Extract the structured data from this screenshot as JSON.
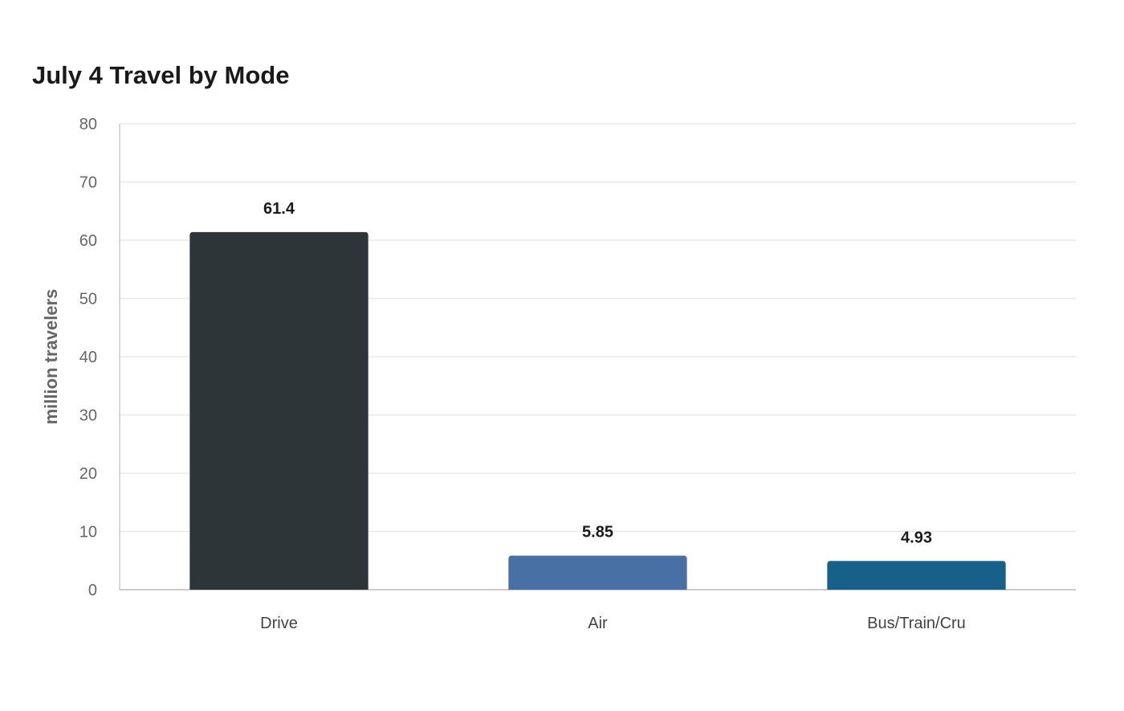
{
  "chart_data": {
    "type": "bar",
    "title": "July 4 Travel by Mode",
    "xlabel": "",
    "ylabel": "million travelers",
    "categories": [
      "Drive",
      "Air",
      "Bus/Train/Cru"
    ],
    "values": [
      61.4,
      5.85,
      4.93
    ],
    "value_labels": [
      "61.4",
      "5.85",
      "4.93"
    ],
    "ylim": [
      0,
      80
    ],
    "yticks": [
      0,
      10,
      20,
      30,
      40,
      50,
      60,
      70,
      80
    ],
    "grid": true,
    "legend": "none",
    "colors": [
      "#2e3538",
      "#4a6fa5",
      "#17608a"
    ],
    "gridline_color": "#e8e8e8",
    "axis_color": "#cccccc"
  }
}
